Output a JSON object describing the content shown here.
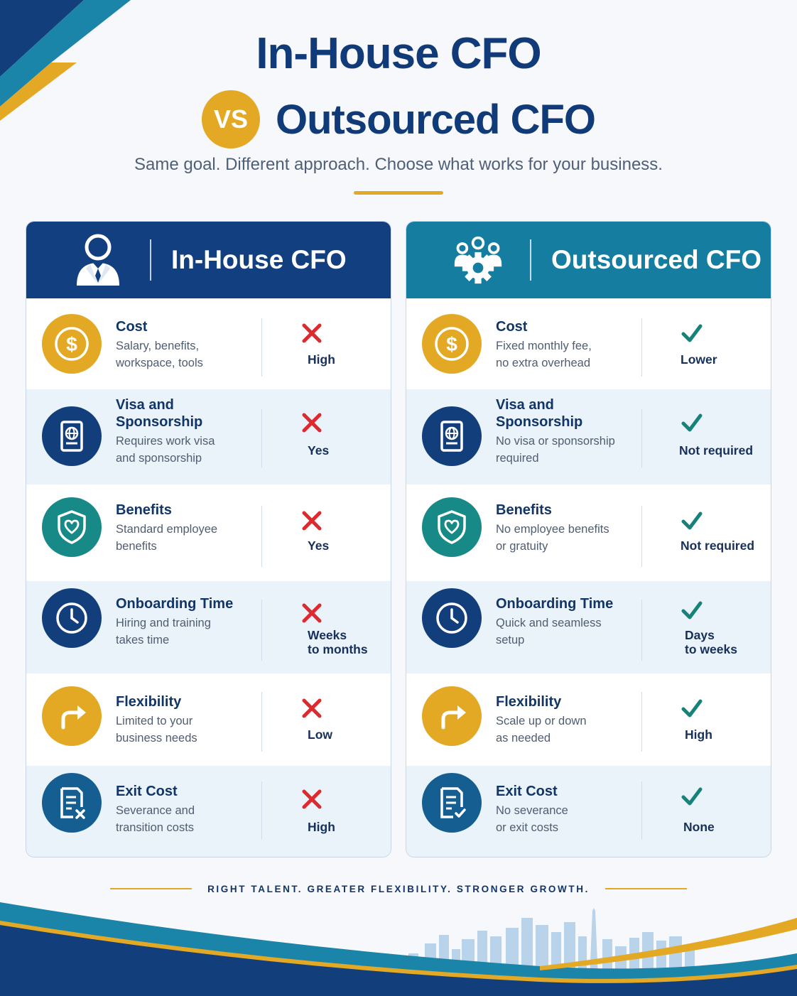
{
  "title": {
    "line1": "In-House CFO",
    "vs": "VS",
    "line2": "Outsourced CFO",
    "subtitle": "Same goal. Different approach. Choose what works for your business."
  },
  "colors": {
    "navy": "#113f80",
    "teal": "#157ea0",
    "gold": "#e3a824",
    "cross_red": "#dc2a2f",
    "check_teal": "#16837a"
  },
  "in_house": {
    "header": "In-House CFO",
    "header_icon": "person-in-suit-icon",
    "rows": [
      {
        "title": "Cost",
        "desc": [
          "Salary, benefits,",
          "workspace, tools"
        ],
        "verdict": [
          "High"
        ],
        "mark": "cross-icon",
        "icon": "dollar-icon"
      },
      {
        "title": "Visa and Sponsorship",
        "desc": [
          "Requires work visa",
          "and sponsorship"
        ],
        "verdict": [
          "Yes"
        ],
        "mark": "cross-icon",
        "icon": "passport-icon"
      },
      {
        "title": "Benefits",
        "desc": [
          "Standard employee",
          "benefits"
        ],
        "verdict": [
          "Yes"
        ],
        "mark": "cross-icon",
        "icon": "shield-heart-icon"
      },
      {
        "title": "Onboarding Time",
        "desc": [
          "Hiring and training",
          "takes time"
        ],
        "verdict": [
          "Weeks",
          "to months"
        ],
        "mark": "cross-icon",
        "icon": "clock-icon"
      },
      {
        "title": "Flexibility",
        "desc": [
          "Limited to your",
          "business needs"
        ],
        "verdict": [
          "Low"
        ],
        "mark": "cross-icon",
        "icon": "redirect-arrow-icon"
      },
      {
        "title": "Exit Cost",
        "desc": [
          "Severance and",
          "transition costs"
        ],
        "verdict": [
          "High"
        ],
        "mark": "cross-icon",
        "icon": "document-x-icon"
      }
    ]
  },
  "outsourced": {
    "header": "Outsourced CFO",
    "header_icon": "team-gear-icon",
    "rows": [
      {
        "title": "Cost",
        "desc": [
          "Fixed monthly fee,",
          "no extra overhead"
        ],
        "verdict": [
          "Lower"
        ],
        "mark": "check-icon",
        "icon": "dollar-icon"
      },
      {
        "title": "Visa and Sponsorship",
        "desc": [
          "No visa or sponsorship",
          "required"
        ],
        "verdict": [
          "Not required"
        ],
        "mark": "check-icon",
        "icon": "passport-icon"
      },
      {
        "title": "Benefits",
        "desc": [
          "No employee benefits",
          "or gratuity"
        ],
        "verdict": [
          "Not required"
        ],
        "mark": "check-icon",
        "icon": "shield-heart-icon"
      },
      {
        "title": "Onboarding Time",
        "desc": [
          "Quick and seamless",
          "setup"
        ],
        "verdict": [
          "Days",
          "to weeks"
        ],
        "mark": "check-icon",
        "icon": "clock-icon"
      },
      {
        "title": "Flexibility",
        "desc": [
          "Scale up or down",
          "as needed"
        ],
        "verdict": [
          "High"
        ],
        "mark": "check-icon",
        "icon": "redirect-arrow-icon"
      },
      {
        "title": "Exit Cost",
        "desc": [
          "No severance",
          "or exit costs"
        ],
        "verdict": [
          "None"
        ],
        "mark": "check-icon",
        "icon": "document-check-icon"
      }
    ]
  },
  "tagline": "RIGHT TALENT. GREATER FLEXIBILITY. STRONGER GROWTH."
}
